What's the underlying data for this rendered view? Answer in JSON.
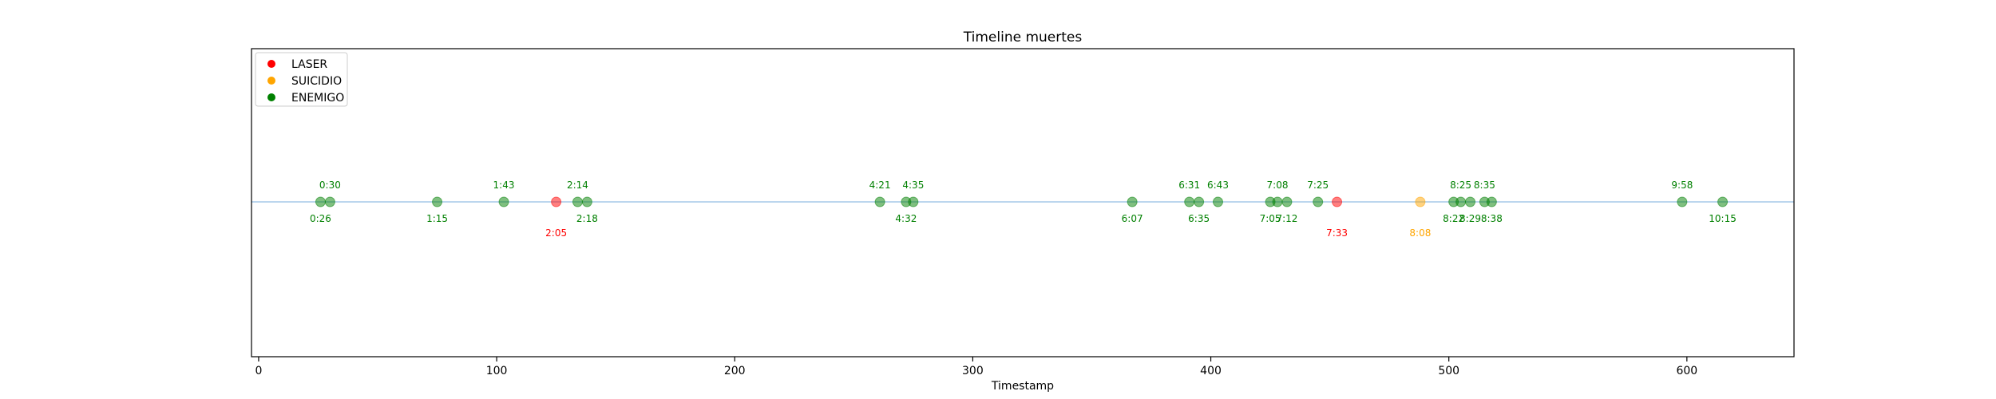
{
  "chart_data": {
    "type": "scatter",
    "title": "Timeline muertes",
    "xlabel": "Timestamp",
    "ylabel": "",
    "xlim": [
      -3,
      645
    ],
    "ylim": [
      -1,
      1
    ],
    "xticks": [
      0,
      100,
      200,
      300,
      400,
      500,
      600
    ],
    "grid": false,
    "legend_position": "top-left",
    "baseline_color": "#a6c8e8",
    "series": [
      {
        "name": "LASER",
        "color": "#ff0000",
        "points": [
          {
            "x": 125,
            "label": "2:05"
          },
          {
            "x": 453,
            "label": "7:33"
          }
        ]
      },
      {
        "name": "SUICIDIO",
        "color": "#ffa500",
        "points": [
          {
            "x": 488,
            "label": "8:08"
          }
        ]
      },
      {
        "name": "ENEMIGO",
        "color": "#008000",
        "points": [
          {
            "x": 26,
            "label": "0:26"
          },
          {
            "x": 30,
            "label": "0:30"
          },
          {
            "x": 75,
            "label": "1:15"
          },
          {
            "x": 103,
            "label": "1:43"
          },
          {
            "x": 134,
            "label": "2:14"
          },
          {
            "x": 138,
            "label": "2:18"
          },
          {
            "x": 261,
            "label": "4:21"
          },
          {
            "x": 272,
            "label": "4:32"
          },
          {
            "x": 275,
            "label": "4:35"
          },
          {
            "x": 367,
            "label": "6:07"
          },
          {
            "x": 391,
            "label": "6:31"
          },
          {
            "x": 395,
            "label": "6:35"
          },
          {
            "x": 403,
            "label": "6:43"
          },
          {
            "x": 425,
            "label": "7:05"
          },
          {
            "x": 428,
            "label": "7:08"
          },
          {
            "x": 432,
            "label": "7:12"
          },
          {
            "x": 445,
            "label": "7:25"
          },
          {
            "x": 502,
            "label": "8:22"
          },
          {
            "x": 505,
            "label": "8:25"
          },
          {
            "x": 509,
            "label": "8:29"
          },
          {
            "x": 515,
            "label": "8:35"
          },
          {
            "x": 518,
            "label": "8:38"
          },
          {
            "x": 598,
            "label": "9:58"
          },
          {
            "x": 615,
            "label": "10:15"
          }
        ]
      }
    ]
  }
}
